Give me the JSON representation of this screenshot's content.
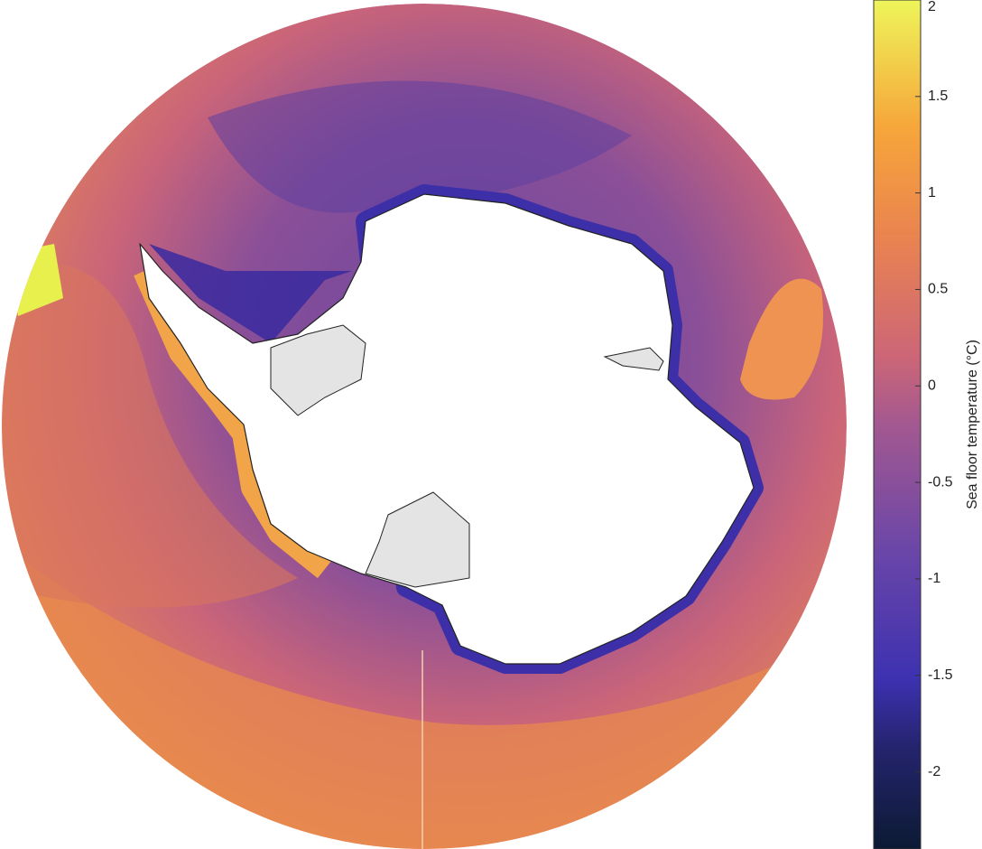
{
  "colorbar": {
    "label": "Sea floor temperature (°C)",
    "lim": [
      -2.4,
      2
    ],
    "ticks": [
      2,
      1.5,
      1,
      0.5,
      0,
      -0.5,
      -1,
      -1.5,
      -2
    ]
  }
}
